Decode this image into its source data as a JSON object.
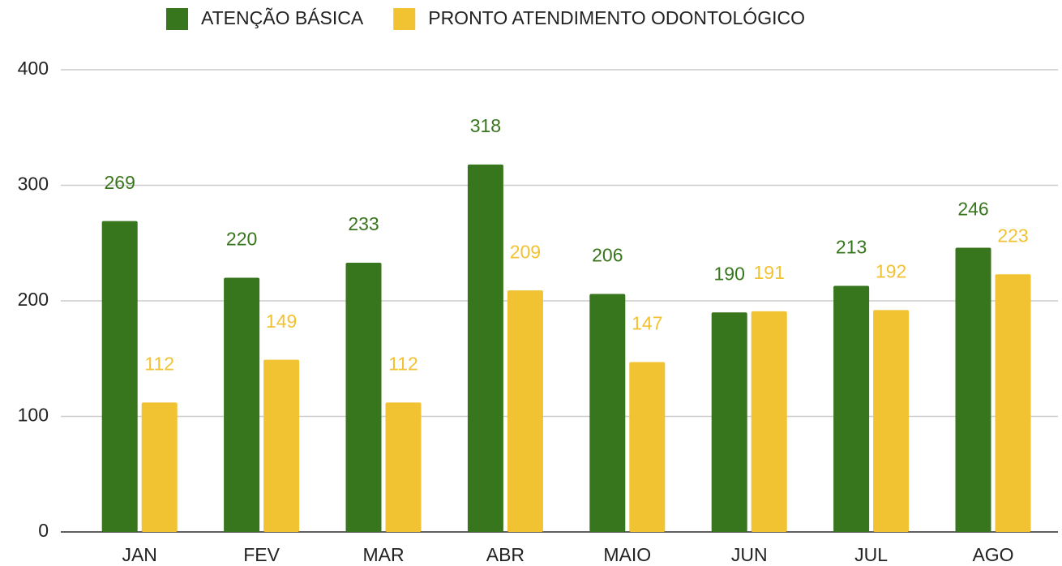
{
  "chart_data": {
    "type": "bar",
    "categories": [
      "JAN",
      "FEV",
      "MAR",
      "ABR",
      "MAIO",
      "JUN",
      "JUL",
      "AGO"
    ],
    "series": [
      {
        "name": "ATENÇÃO BÁSICA",
        "color": "#38761d",
        "values": [
          269,
          220,
          233,
          318,
          206,
          190,
          213,
          246
        ]
      },
      {
        "name": "PRONTO ATENDIMENTO ODONTOLÓGICO",
        "color": "#f1c232",
        "values": [
          112,
          149,
          112,
          209,
          147,
          191,
          192,
          223
        ]
      }
    ],
    "ylim": [
      0,
      400
    ],
    "yticks": [
      0,
      100,
      200,
      300,
      400
    ],
    "grid": true,
    "legend": "top"
  }
}
